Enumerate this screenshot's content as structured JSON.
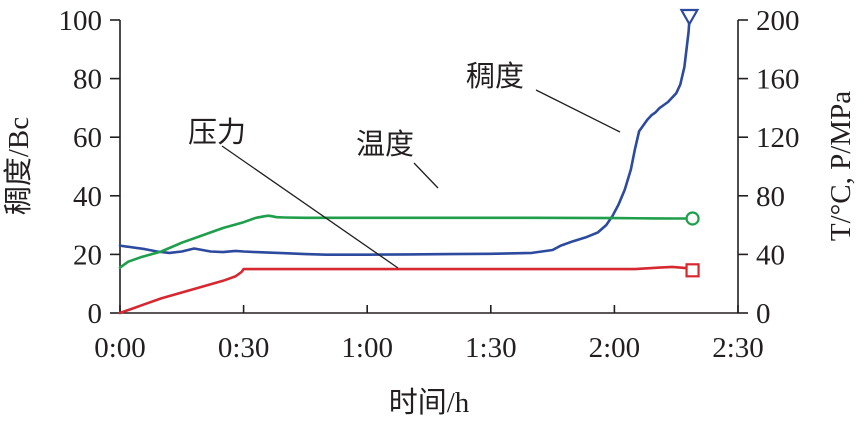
{
  "chart_data": {
    "type": "line",
    "title": "",
    "xlabel": "时间/h",
    "ylabel_left": "稠度/Bc",
    "ylabel_right": "T/°C, P/MPa",
    "x_unit": "minutes",
    "xlim": [
      0,
      150
    ],
    "ylim_left": [
      0,
      100
    ],
    "ylim_right": [
      0,
      200
    ],
    "x_ticks": [
      {
        "value": 0,
        "label": "0:00"
      },
      {
        "value": 30,
        "label": "0:30"
      },
      {
        "value": 60,
        "label": "1:00"
      },
      {
        "value": 90,
        "label": "1:30"
      },
      {
        "value": 120,
        "label": "2:00"
      },
      {
        "value": 150,
        "label": "2:30"
      }
    ],
    "y_left_ticks": [
      "0",
      "20",
      "40",
      "60",
      "80",
      "100"
    ],
    "y_right_ticks": [
      "0",
      "40",
      "80",
      "120",
      "160",
      "200"
    ],
    "grid": false,
    "series": [
      {
        "name": "稠度",
        "axis": "left",
        "color": "#2c4a9e",
        "end_marker": "triangle-down",
        "x": [
          0,
          3,
          6,
          9,
          12,
          15,
          18,
          20,
          22,
          25,
          28,
          30,
          33,
          36,
          40,
          45,
          50,
          60,
          70,
          80,
          90,
          100,
          105,
          107,
          110,
          113,
          116,
          118,
          119.5,
          121,
          122.5,
          124,
          125,
          126,
          127,
          128,
          129,
          130,
          131,
          132,
          133,
          134,
          135,
          136,
          137,
          137.5,
          138,
          138.2
        ],
        "values": [
          23,
          22.4,
          21.8,
          21,
          20.5,
          21,
          22,
          21.5,
          21,
          20.8,
          21.2,
          21,
          20.8,
          20.6,
          20.4,
          20.1,
          19.9,
          19.9,
          20,
          20.1,
          20.2,
          20.5,
          21.5,
          23,
          24.5,
          25.8,
          27.5,
          30,
          33,
          37,
          42,
          49,
          56,
          62,
          64,
          66,
          67.5,
          68.5,
          70,
          71,
          72,
          73.5,
          75,
          78,
          84,
          90,
          96,
          100
        ]
      },
      {
        "name": "温度",
        "axis": "right",
        "color": "#1f9e4b",
        "end_marker": "circle",
        "x": [
          0,
          2,
          5,
          10,
          15,
          20,
          25,
          30,
          33,
          35,
          36,
          37,
          38,
          40,
          45,
          60,
          80,
          100,
          120,
          130,
          135,
          138
        ],
        "values": [
          31,
          35,
          38,
          42,
          48,
          53,
          58,
          62,
          65,
          66,
          66.4,
          66,
          65.4,
          65.2,
          65,
          65,
          65,
          65,
          64.8,
          64.6,
          64.5,
          64.5
        ]
      },
      {
        "name": "压力",
        "axis": "right",
        "color": "#d62831",
        "end_marker": "square",
        "x": [
          0,
          1,
          3,
          6,
          10,
          15,
          20,
          25,
          28,
          29.5,
          30,
          35,
          60,
          90,
          110,
          120,
          125,
          128,
          131,
          134,
          136,
          138
        ],
        "values": [
          0,
          1,
          3,
          6,
          10,
          14,
          18,
          22,
          25,
          28,
          30,
          30,
          30,
          30,
          30,
          30,
          30,
          30.5,
          31,
          31.5,
          31,
          30.5
        ]
      }
    ],
    "annotations": [
      {
        "text": "稠度",
        "series": "稠度"
      },
      {
        "text": "温度",
        "series": "温度"
      },
      {
        "text": "压力",
        "series": "压力"
      }
    ]
  }
}
